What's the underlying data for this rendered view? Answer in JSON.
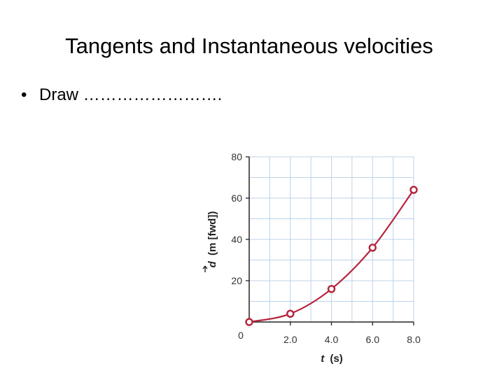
{
  "slide": {
    "title": "Tangents and Instantaneous velocities",
    "bullet_marker": "•",
    "bullet_text": "Draw ……………………."
  },
  "colors": {
    "series": "#b5223a",
    "grid": "#bcd3ea",
    "axis": "#222222"
  },
  "chart_data": {
    "type": "line",
    "title": "",
    "xlabel_var": "t",
    "xlabel_unit": "(s)",
    "ylabel_var": "d",
    "ylabel_unit": "(m [fwd])",
    "xlim": [
      0,
      8
    ],
    "ylim": [
      0,
      80
    ],
    "x_ticks": [
      {
        "value": 0,
        "label": "0"
      },
      {
        "value": 2,
        "label": "2.0"
      },
      {
        "value": 4,
        "label": "4.0"
      },
      {
        "value": 6,
        "label": "6.0"
      },
      {
        "value": 8,
        "label": "8.0"
      }
    ],
    "y_ticks": [
      {
        "value": 20,
        "label": "20"
      },
      {
        "value": 40,
        "label": "40"
      },
      {
        "value": 60,
        "label": "60"
      },
      {
        "value": 80,
        "label": "80"
      }
    ],
    "grid": true,
    "grid_step_x": 1,
    "grid_step_y": 10,
    "points": [
      {
        "x": 0,
        "y": 0
      },
      {
        "x": 2,
        "y": 4
      },
      {
        "x": 4,
        "y": 16
      },
      {
        "x": 6,
        "y": 36
      },
      {
        "x": 8,
        "y": 64
      }
    ],
    "curve": "smooth"
  }
}
